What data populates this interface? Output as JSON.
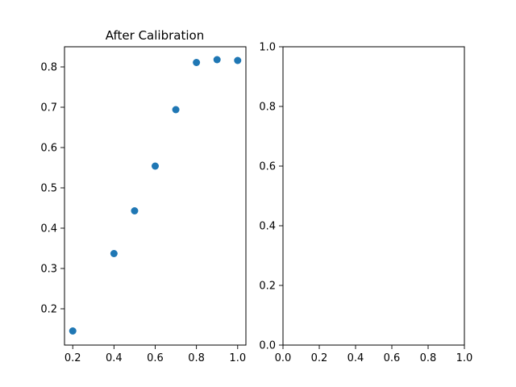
{
  "chart_data": [
    {
      "type": "scatter",
      "title": "After Calibration",
      "xlabel": "",
      "ylabel": "",
      "xlim": [
        0.16,
        1.04
      ],
      "ylim": [
        0.11,
        0.85
      ],
      "xticks": [
        "0.2",
        "0.4",
        "0.6",
        "0.8",
        "1.0"
      ],
      "xtick_values": [
        0.2,
        0.4,
        0.6,
        0.8,
        1.0
      ],
      "yticks": [
        "0.2",
        "0.3",
        "0.4",
        "0.5",
        "0.6",
        "0.7",
        "0.8"
      ],
      "ytick_values": [
        0.2,
        0.3,
        0.4,
        0.5,
        0.6,
        0.7,
        0.8
      ],
      "grid": false,
      "color": "#1f77b4",
      "x": [
        0.2,
        0.4,
        0.5,
        0.6,
        0.7,
        0.8,
        0.9,
        1.0
      ],
      "y": [
        0.145,
        0.337,
        0.443,
        0.554,
        0.694,
        0.811,
        0.818,
        0.816
      ]
    },
    {
      "type": "scatter",
      "title": "",
      "xlabel": "",
      "ylabel": "",
      "xlim": [
        0.0,
        1.0
      ],
      "ylim": [
        0.0,
        1.0
      ],
      "xticks": [
        "0.0",
        "0.2",
        "0.4",
        "0.6",
        "0.8",
        "1.0"
      ],
      "xtick_values": [
        0.0,
        0.2,
        0.4,
        0.6,
        0.8,
        1.0
      ],
      "yticks": [
        "0.0",
        "0.2",
        "0.4",
        "0.6",
        "0.8",
        "1.0"
      ],
      "ytick_values": [
        0.0,
        0.2,
        0.4,
        0.6,
        0.8,
        1.0
      ],
      "grid": false,
      "x": [],
      "y": []
    }
  ]
}
